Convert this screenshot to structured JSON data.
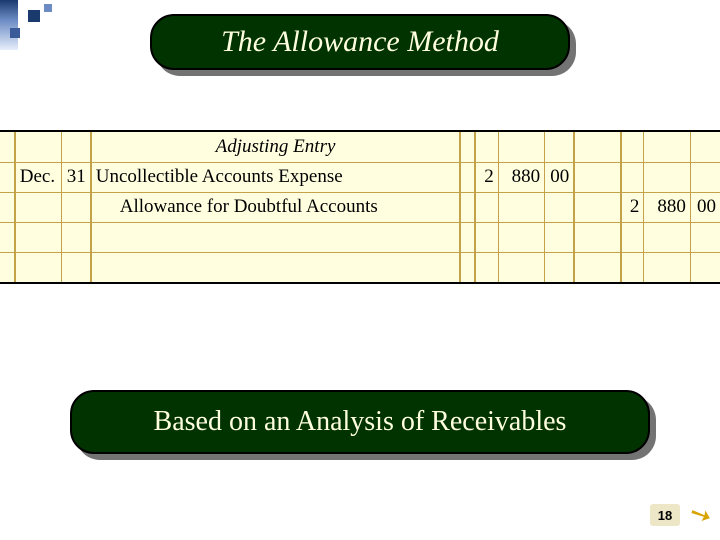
{
  "corner_colors": {
    "dark": "#1a3a6e",
    "mid": "#3b5a98",
    "light": "#6b8bc4"
  },
  "title_banner": {
    "text": "The Allowance Method",
    "bg": "#003300",
    "fg": "#ffffe0",
    "border": "#000000"
  },
  "subtitle_banner": {
    "text": "Based on an Analysis of Receivables",
    "bg": "#003300",
    "fg": "#ffffe0",
    "border": "#000000"
  },
  "ledger": {
    "background": "#ffffdf",
    "rule_color": "#c4a24a",
    "header": "Adjusting Entry",
    "rows": [
      {
        "month": "Dec.",
        "day": "31",
        "desc": "Uncollectible Accounts Expense",
        "debit": {
          "thousands": "2",
          "hundreds": "880",
          "cents": "00"
        },
        "credit": null
      },
      {
        "month": "",
        "day": "",
        "desc": "Allowance for Doubtful Accounts",
        "indent": true,
        "debit": null,
        "credit": {
          "thousands": "2",
          "hundreds": "880",
          "cents": "00"
        }
      }
    ]
  },
  "page_number": "18"
}
